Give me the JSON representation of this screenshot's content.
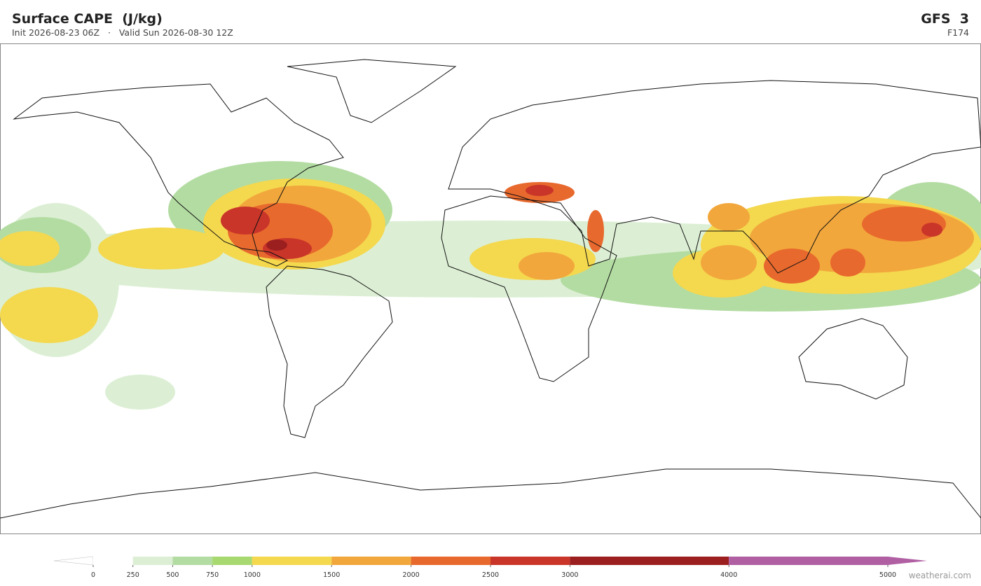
{
  "header": {
    "title": "Surface CAPE  (J/kg)",
    "subtitle": "Init 2026-08-23 06Z   ·   Valid Sun 2026-08-30 12Z",
    "model": "GFS  3",
    "forecast_hour": "F174"
  },
  "colorbar": {
    "ticks": [
      0,
      250,
      500,
      750,
      1000,
      1500,
      2000,
      2500,
      3000,
      4000,
      5000
    ],
    "colors": [
      "#ffffff",
      "#dcefd4",
      "#b3dca2",
      "#a8d970",
      "#f4d84e",
      "#f2a73c",
      "#e8692d",
      "#c93529",
      "#9b1f1f",
      "#b05fa3"
    ],
    "under_color": "#ffffff",
    "over_color": "#b05fa3"
  },
  "watermark": "weatherai.com"
}
